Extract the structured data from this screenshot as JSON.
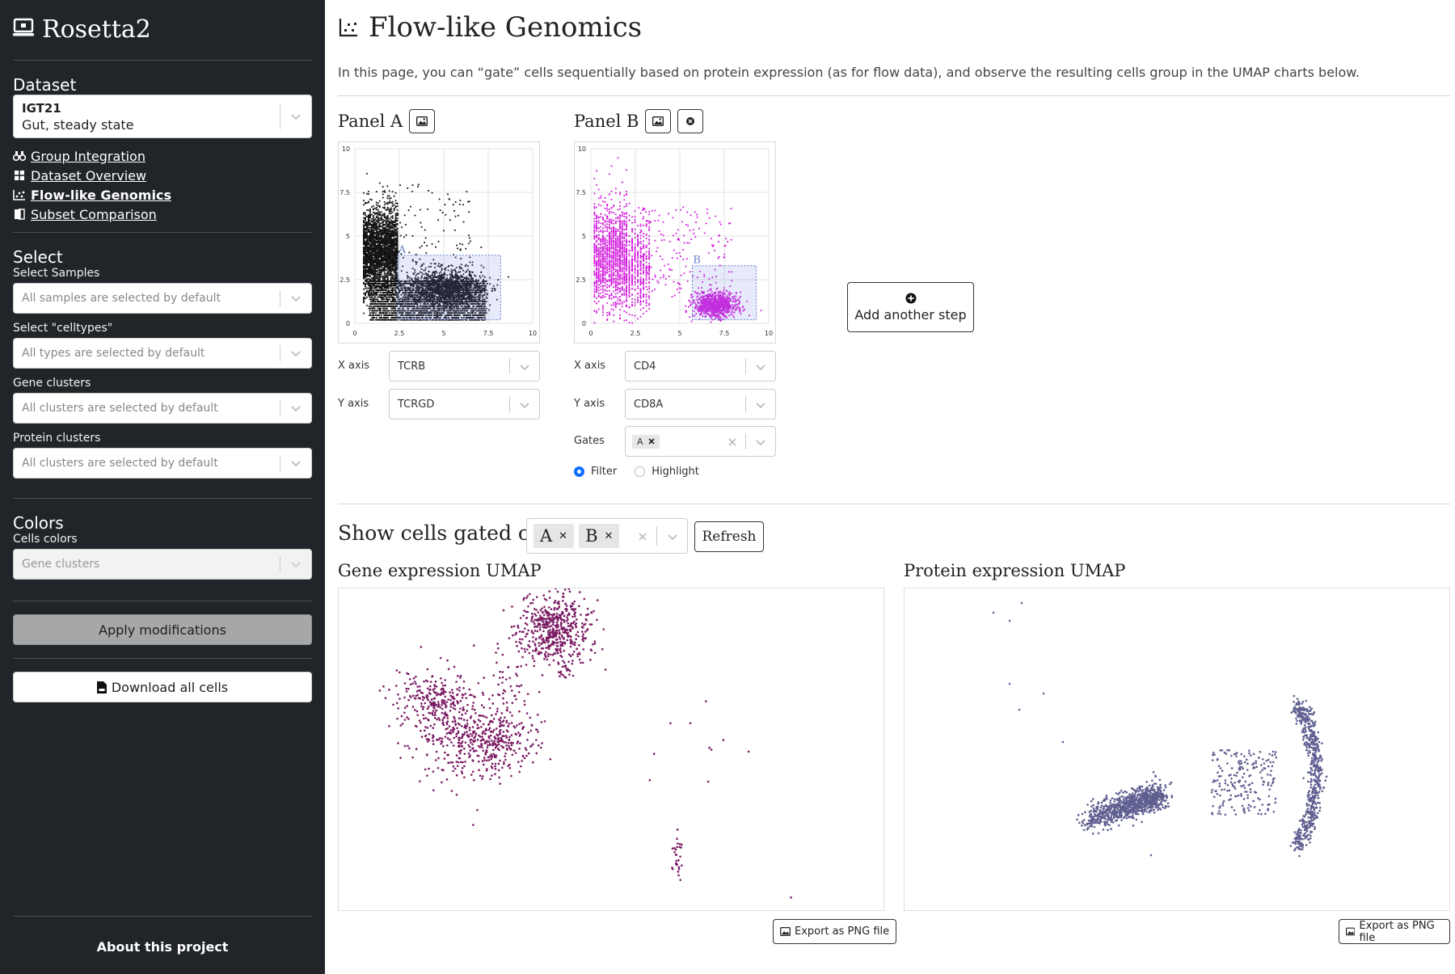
{
  "app": {
    "title": "Rosetta2"
  },
  "sidebar": {
    "dataset": {
      "heading": "Dataset",
      "selected_id": "IGT21",
      "selected_desc": "Gut, steady state"
    },
    "nav": [
      {
        "label": "Group Integration",
        "icon": "binoculars-icon",
        "active": false
      },
      {
        "label": "Dataset Overview",
        "icon": "grid-icon",
        "active": false
      },
      {
        "label": "Flow-like Genomics",
        "icon": "scatter-icon",
        "active": true
      },
      {
        "label": "Subset Comparison",
        "icon": "compare-icon",
        "active": false
      }
    ],
    "select": {
      "heading": "Select",
      "samples_label": "Select Samples",
      "samples_placeholder": "All samples are selected by default",
      "celltypes_label": "Select \"celltypes\"",
      "celltypes_placeholder": "All types are selected by default",
      "gene_clusters_label": "Gene clusters",
      "gene_clusters_placeholder": "All clusters are selected by default",
      "protein_clusters_label": "Protein clusters",
      "protein_clusters_placeholder": "All clusters are selected by default"
    },
    "colors": {
      "heading": "Colors",
      "cells_colors_label": "Cells colors",
      "cells_colors_value": "Gene clusters"
    },
    "apply_label": "Apply modifications",
    "download_label": "Download all cells",
    "about_label": "About this project"
  },
  "main": {
    "title": "Flow-like Genomics",
    "intro": "In this page, you can “gate” cells sequentially based on protein expression (as for flow data), and observe the resulting cells group in the UMAP charts below.",
    "panel_a": {
      "title": "Panel A",
      "x_axis_label": "X axis",
      "x_axis_value": "TCRB",
      "y_axis_label": "Y axis",
      "y_axis_value": "TCRGD",
      "gate_label": "A"
    },
    "panel_b": {
      "title": "Panel B",
      "x_axis_label": "X axis",
      "x_axis_value": "CD4",
      "y_axis_label": "Y axis",
      "y_axis_value": "CD8A",
      "gates_label": "Gates",
      "gates_selected": [
        "A"
      ],
      "gate_label": "B",
      "mode_filter": "Filter",
      "mode_highlight": "Highlight",
      "mode_selected": "Filter"
    },
    "add_step_label": "Add another step",
    "show_cells": {
      "title": "Show cells gated on",
      "gates": [
        "A",
        "B"
      ],
      "refresh_label": "Refresh"
    },
    "gene_umap": {
      "title": "Gene expression UMAP",
      "export_label": "Export as PNG file",
      "point_color": "#7a1a63"
    },
    "protein_umap": {
      "title": "Protein expression UMAP",
      "export_label": "Export as PNG file",
      "point_color": "#5f5f91"
    }
  },
  "chart_data": [
    {
      "type": "scatter",
      "title": "",
      "xlabel": "",
      "ylabel": "",
      "xlim": [
        0,
        10
      ],
      "ylim": [
        0,
        10
      ],
      "xticks": [
        "0",
        "2.5",
        "5",
        "7.5",
        "10"
      ],
      "yticks": [
        "0",
        "2.5",
        "5",
        "7.5",
        "10"
      ],
      "color": "#111111",
      "gate": {
        "name": "A",
        "x": [
          2.4,
          8.2
        ],
        "y": [
          0.2,
          3.9
        ]
      }
    },
    {
      "type": "scatter",
      "title": "",
      "xlabel": "",
      "ylabel": "",
      "xlim": [
        0,
        10
      ],
      "ylim": [
        0,
        10
      ],
      "xticks": [
        "0",
        "2.5",
        "5",
        "7.5",
        "10"
      ],
      "yticks": [
        "0",
        "2.5",
        "5",
        "7.5",
        "10"
      ],
      "color": "#d21bdc",
      "gate": {
        "name": "B",
        "x": [
          5.7,
          9.3
        ],
        "y": [
          0.2,
          3.3
        ]
      }
    }
  ]
}
